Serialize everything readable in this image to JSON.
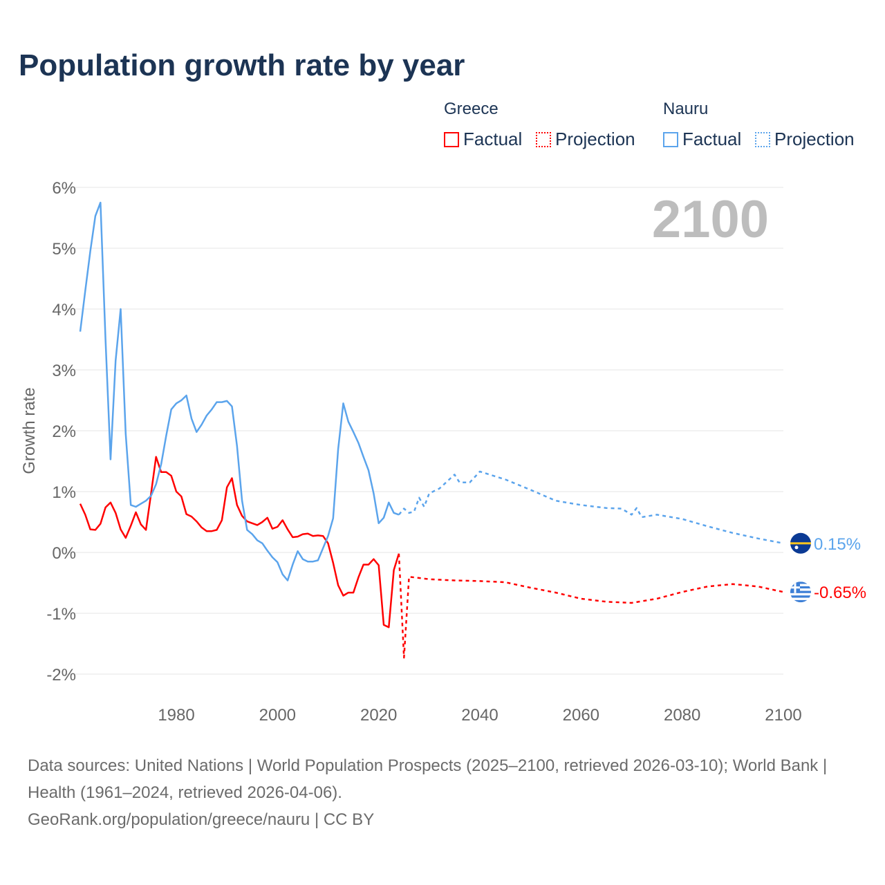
{
  "title": "Population growth rate by year",
  "legend": {
    "groups": [
      {
        "name": "Greece",
        "factual": "Factual",
        "projection": "Projection",
        "color": "#ff0000"
      },
      {
        "name": "Nauru",
        "factual": "Factual",
        "projection": "Projection",
        "color": "#5ba4ec"
      }
    ]
  },
  "footer": {
    "sources": "Data sources: United Nations | World Population Prospects (2025–2100, retrieved 2026-03-10); World Bank | Health (1961–2024, retrieved 2026-04-06).",
    "site": "GeoRank.org/population/greece/nauru | CC BY"
  },
  "chart_data": {
    "type": "line",
    "ylabel": "Growth rate",
    "xlabel": "",
    "year_watermark": "2100",
    "xlim": [
      1961,
      2100
    ],
    "ylim": [
      -2,
      6
    ],
    "x_ticks": [
      1980,
      2000,
      2020,
      2040,
      2060,
      2080,
      2100
    ],
    "y_ticks": [
      {
        "v": 6,
        "label": "6%"
      },
      {
        "v": 5,
        "label": "5%"
      },
      {
        "v": 4,
        "label": "4%"
      },
      {
        "v": 3,
        "label": "3%"
      },
      {
        "v": 2,
        "label": "2%"
      },
      {
        "v": 1,
        "label": "1%"
      },
      {
        "v": 0,
        "label": "0%"
      },
      {
        "v": -1,
        "label": "-1%"
      },
      {
        "v": -2,
        "label": "-2%"
      }
    ],
    "series": [
      {
        "name": "Greece",
        "kind": "factual",
        "color": "#ff0000",
        "x_start": 1961,
        "values": [
          0.8,
          0.62,
          0.38,
          0.37,
          0.47,
          0.74,
          0.82,
          0.65,
          0.38,
          0.24,
          0.44,
          0.66,
          0.46,
          0.37,
          0.96,
          1.57,
          1.32,
          1.32,
          1.26,
          1.0,
          0.92,
          0.63,
          0.59,
          0.51,
          0.41,
          0.35,
          0.35,
          0.37,
          0.53,
          1.07,
          1.22,
          0.78,
          0.6,
          0.51,
          0.48,
          0.45,
          0.5,
          0.57,
          0.39,
          0.42,
          0.53,
          0.38,
          0.25,
          0.26,
          0.3,
          0.31,
          0.27,
          0.28,
          0.27,
          0.15,
          -0.17,
          -0.54,
          -0.71,
          -0.66,
          -0.66,
          -0.41,
          -0.2,
          -0.2,
          -0.11,
          -0.21,
          -1.19,
          -1.23,
          -0.29,
          -0.02
        ]
      },
      {
        "name": "Greece",
        "kind": "projection",
        "color": "#ff0000",
        "points": [
          [
            2024,
            -0.02
          ],
          [
            2025,
            -1.73
          ],
          [
            2026,
            -0.4
          ],
          [
            2030,
            -0.44
          ],
          [
            2035,
            -0.46
          ],
          [
            2040,
            -0.47
          ],
          [
            2045,
            -0.49
          ],
          [
            2050,
            -0.58
          ],
          [
            2055,
            -0.66
          ],
          [
            2060,
            -0.76
          ],
          [
            2065,
            -0.81
          ],
          [
            2070,
            -0.83
          ],
          [
            2075,
            -0.76
          ],
          [
            2080,
            -0.65
          ],
          [
            2085,
            -0.56
          ],
          [
            2090,
            -0.52
          ],
          [
            2095,
            -0.56
          ],
          [
            2100,
            -0.65
          ]
        ]
      },
      {
        "name": "Nauru",
        "kind": "factual",
        "color": "#5ba4ec",
        "x_start": 1961,
        "values": [
          3.63,
          4.3,
          4.95,
          5.53,
          5.75,
          3.5,
          1.53,
          3.15,
          4.0,
          1.95,
          0.78,
          0.75,
          0.8,
          0.85,
          0.93,
          1.12,
          1.45,
          1.92,
          2.35,
          2.45,
          2.5,
          2.58,
          2.2,
          1.98,
          2.1,
          2.25,
          2.35,
          2.47,
          2.47,
          2.49,
          2.4,
          1.75,
          0.85,
          0.37,
          0.3,
          0.2,
          0.15,
          0.03,
          -0.08,
          -0.16,
          -0.36,
          -0.46,
          -0.2,
          0.02,
          -0.11,
          -0.15,
          -0.15,
          -0.13,
          0.07,
          0.27,
          0.56,
          1.7,
          2.45,
          2.15,
          1.98,
          1.8,
          1.57,
          1.35,
          0.97,
          0.48,
          0.57,
          0.82,
          0.65,
          0.62
        ]
      },
      {
        "name": "Nauru",
        "kind": "projection",
        "color": "#5ba4ec",
        "points": [
          [
            2024,
            0.62
          ],
          [
            2025,
            0.72
          ],
          [
            2026,
            0.65
          ],
          [
            2027,
            0.67
          ],
          [
            2028,
            0.9
          ],
          [
            2029,
            0.75
          ],
          [
            2030,
            0.97
          ],
          [
            2032,
            1.05
          ],
          [
            2035,
            1.28
          ],
          [
            2036,
            1.15
          ],
          [
            2038,
            1.15
          ],
          [
            2040,
            1.33
          ],
          [
            2045,
            1.2
          ],
          [
            2050,
            1.03
          ],
          [
            2055,
            0.85
          ],
          [
            2060,
            0.78
          ],
          [
            2065,
            0.73
          ],
          [
            2068,
            0.72
          ],
          [
            2070,
            0.62
          ],
          [
            2071,
            0.73
          ],
          [
            2072,
            0.58
          ],
          [
            2075,
            0.62
          ],
          [
            2080,
            0.55
          ],
          [
            2085,
            0.43
          ],
          [
            2090,
            0.32
          ],
          [
            2095,
            0.23
          ],
          [
            2100,
            0.15
          ]
        ]
      }
    ],
    "end_labels": [
      {
        "name": "Nauru",
        "label": "0.15%",
        "value": 0.15,
        "color": "#5ba4ec"
      },
      {
        "name": "Greece",
        "label": "-0.65%",
        "value": -0.65,
        "color": "#ff0000"
      }
    ]
  }
}
